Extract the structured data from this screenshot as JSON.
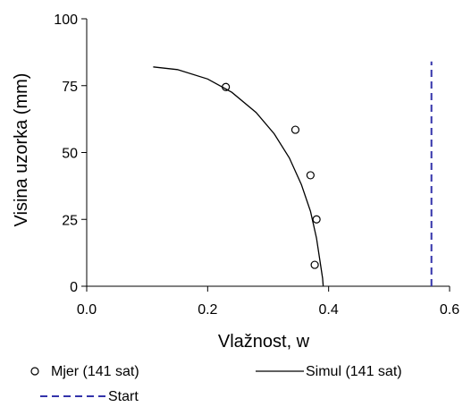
{
  "chart_data": {
    "type": "scatter",
    "xlabel": "Vlažnost, w",
    "ylabel": "Visina uzorka (mm)",
    "xlim": [
      0.0,
      0.6
    ],
    "ylim": [
      0,
      100
    ],
    "x_ticks": [
      "0.0",
      "0.2",
      "0.4",
      "0.6"
    ],
    "y_ticks": [
      "0",
      "25",
      "50",
      "75",
      "100"
    ],
    "grid": false,
    "legend_position": "bottom",
    "series": [
      {
        "name": "Mjer (141 sat)",
        "kind": "markers",
        "marker": "circle-open",
        "color": "#000000",
        "x": [
          0.23,
          0.345,
          0.37,
          0.38,
          0.377
        ],
        "y": [
          74.5,
          58.5,
          41.5,
          25,
          8
        ]
      },
      {
        "name": "Simul (141 sat)",
        "kind": "line",
        "color": "#000000",
        "x": [
          0.11,
          0.15,
          0.2,
          0.24,
          0.28,
          0.31,
          0.335,
          0.355,
          0.37,
          0.38,
          0.386,
          0.39,
          0.391
        ],
        "y": [
          82,
          81,
          77.5,
          72.5,
          65,
          57,
          48,
          38,
          28,
          18,
          9,
          3,
          0
        ]
      },
      {
        "name": "Start",
        "kind": "line",
        "dash": "dashed",
        "color": "#3333aa",
        "x": [
          0.57,
          0.57
        ],
        "y": [
          0,
          84
        ]
      }
    ]
  }
}
